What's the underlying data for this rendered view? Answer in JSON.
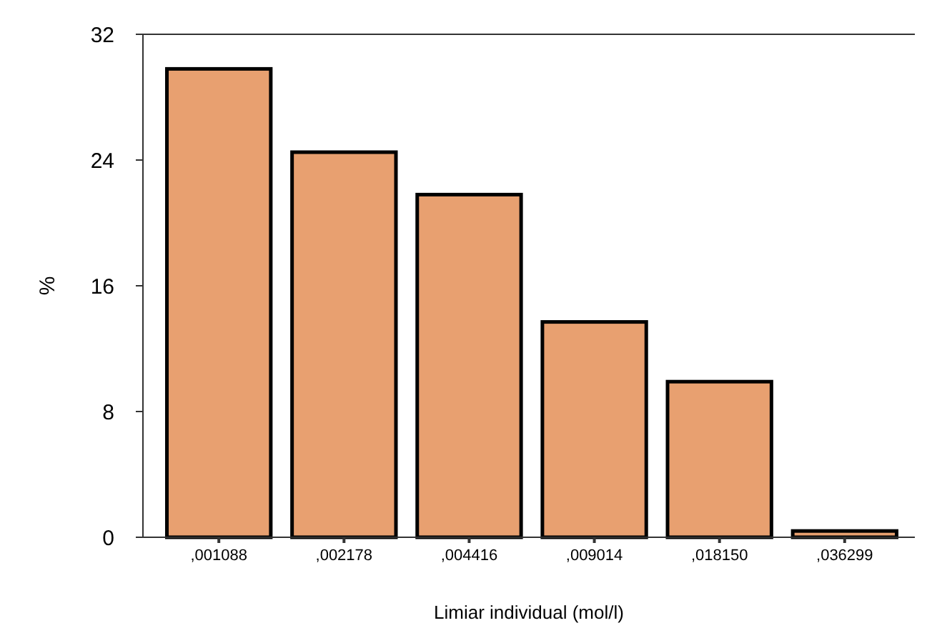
{
  "chart_data": {
    "type": "bar",
    "xlabel": "Limiar individual (mol/l)",
    "ylabel": "%",
    "categories": [
      ",001088",
      ",002178",
      ",004416",
      ",009014",
      ",018150",
      ",036299"
    ],
    "values": [
      29.8,
      24.5,
      21.8,
      13.7,
      9.9,
      0.4
    ],
    "color": "#e8a070",
    "ylim": [
      0,
      32
    ],
    "yticks": [
      0,
      8,
      16,
      24,
      32
    ],
    "grid": false
  }
}
